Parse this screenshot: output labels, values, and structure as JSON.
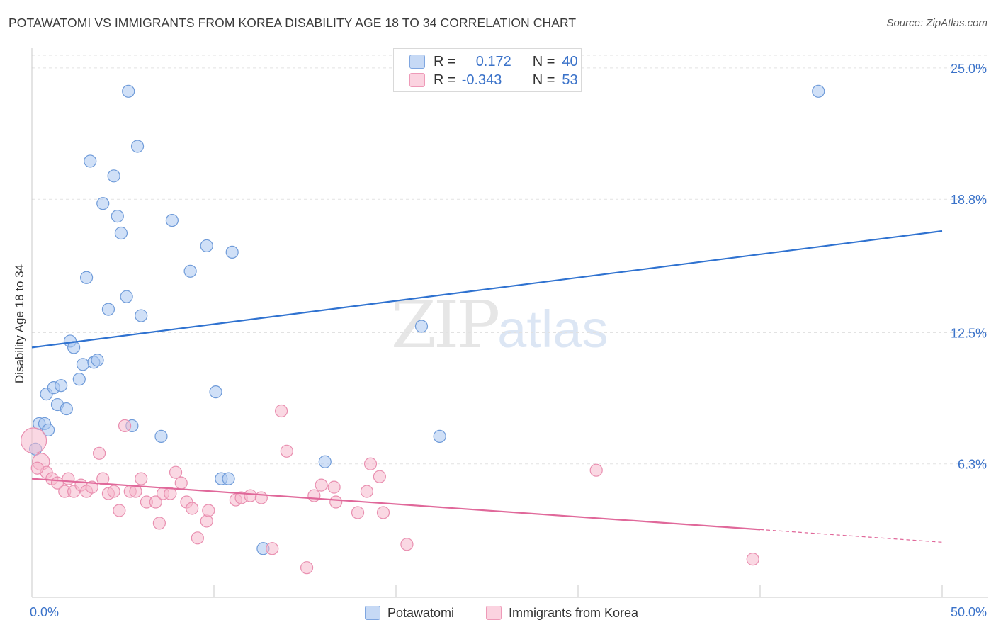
{
  "header": {
    "title": "POTAWATOMI VS IMMIGRANTS FROM KOREA DISABILITY AGE 18 TO 34 CORRELATION CHART",
    "source": "Source: ZipAtlas.com"
  },
  "watermark": {
    "zip": "ZIP",
    "atlas": "atlas"
  },
  "legend": {
    "rows": [
      {
        "r_label": "R =",
        "r_value": "0.172",
        "n_label": "N =",
        "n_value": "40",
        "color": "#a9c6f0"
      },
      {
        "r_label": "R =",
        "r_value": "-0.343",
        "n_label": "N =",
        "n_value": "53",
        "color": "#f5b8cc"
      }
    ]
  },
  "bottom_legend": {
    "series1": "Potawatomi",
    "series2": "Immigrants from Korea"
  },
  "colors": {
    "blue_fill": "#a9c6f0",
    "blue_line": "#2f72d0",
    "pink_fill": "#f5b8cc",
    "pink_line": "#e0689a",
    "tick_label": "#3a72c9",
    "grid": "#e2e2e2"
  },
  "chart_data": {
    "type": "scatter",
    "title": "POTAWATOMI VS IMMIGRANTS FROM KOREA DISABILITY AGE 18 TO 34 CORRELATION CHART",
    "xlabel": "",
    "ylabel": "Disability Age 18 to 34",
    "xlim": [
      0,
      50
    ],
    "ylim": [
      0,
      25.6
    ],
    "x_tick_labels": [
      "0.0%",
      "50.0%"
    ],
    "y_ticks": [
      6.3,
      12.5,
      18.8,
      25.0
    ],
    "y_tick_labels": [
      "6.3%",
      "12.5%",
      "18.8%",
      "25.0%"
    ],
    "grid": "horizontal-dashed",
    "legend_position": "top-center",
    "series": [
      {
        "name": "Potawatomi",
        "color": "#a9c6f0",
        "points": [
          [
            0.2,
            7.0
          ],
          [
            0.4,
            8.2
          ],
          [
            0.7,
            8.2
          ],
          [
            0.9,
            7.9
          ],
          [
            0.8,
            9.6
          ],
          [
            1.2,
            9.9
          ],
          [
            1.4,
            9.1
          ],
          [
            1.6,
            10.0
          ],
          [
            1.9,
            8.9
          ],
          [
            2.1,
            12.1
          ],
          [
            2.3,
            11.8
          ],
          [
            2.6,
            10.3
          ],
          [
            2.8,
            11.0
          ],
          [
            3.0,
            15.1
          ],
          [
            3.2,
            20.6
          ],
          [
            3.4,
            11.1
          ],
          [
            3.6,
            11.2
          ],
          [
            3.9,
            18.6
          ],
          [
            4.2,
            13.6
          ],
          [
            4.5,
            19.9
          ],
          [
            4.7,
            18.0
          ],
          [
            4.9,
            17.2
          ],
          [
            5.2,
            14.2
          ],
          [
            5.3,
            23.9
          ],
          [
            5.5,
            8.1
          ],
          [
            5.8,
            21.3
          ],
          [
            6.0,
            13.3
          ],
          [
            7.1,
            7.6
          ],
          [
            7.7,
            17.8
          ],
          [
            8.7,
            15.4
          ],
          [
            9.6,
            16.6
          ],
          [
            10.1,
            9.7
          ],
          [
            10.4,
            5.6
          ],
          [
            10.8,
            5.6
          ],
          [
            11.0,
            16.3
          ],
          [
            12.7,
            2.3
          ],
          [
            16.1,
            6.4
          ],
          [
            21.4,
            12.8
          ],
          [
            22.4,
            7.6
          ],
          [
            43.2,
            23.9
          ]
        ]
      },
      {
        "name": "Immigrants from Korea",
        "color": "#f5b8cc",
        "points": [
          [
            0.1,
            7.4
          ],
          [
            0.5,
            6.4
          ],
          [
            0.8,
            5.9
          ],
          [
            1.1,
            5.6
          ],
          [
            1.4,
            5.4
          ],
          [
            1.8,
            5.0
          ],
          [
            2.0,
            5.6
          ],
          [
            2.3,
            5.0
          ],
          [
            2.7,
            5.3
          ],
          [
            3.0,
            5.0
          ],
          [
            3.3,
            5.2
          ],
          [
            3.7,
            6.8
          ],
          [
            3.9,
            5.6
          ],
          [
            4.2,
            4.9
          ],
          [
            4.5,
            5.0
          ],
          [
            4.8,
            4.1
          ],
          [
            5.1,
            8.1
          ],
          [
            5.4,
            5.0
          ],
          [
            5.7,
            5.0
          ],
          [
            6.0,
            5.6
          ],
          [
            6.3,
            4.5
          ],
          [
            6.8,
            4.5
          ],
          [
            7.0,
            3.5
          ],
          [
            7.2,
            4.9
          ],
          [
            7.6,
            4.9
          ],
          [
            7.9,
            5.9
          ],
          [
            8.2,
            5.4
          ],
          [
            8.5,
            4.5
          ],
          [
            8.8,
            4.2
          ],
          [
            9.1,
            2.8
          ],
          [
            9.6,
            3.6
          ],
          [
            9.7,
            4.1
          ],
          [
            11.2,
            4.6
          ],
          [
            11.5,
            4.7
          ],
          [
            12.0,
            4.8
          ],
          [
            12.6,
            4.7
          ],
          [
            13.2,
            2.3
          ],
          [
            13.7,
            8.8
          ],
          [
            14.0,
            6.9
          ],
          [
            15.1,
            1.4
          ],
          [
            15.5,
            4.8
          ],
          [
            15.9,
            5.3
          ],
          [
            16.6,
            5.2
          ],
          [
            16.7,
            4.5
          ],
          [
            17.9,
            4.0
          ],
          [
            18.4,
            5.0
          ],
          [
            18.6,
            6.3
          ],
          [
            19.1,
            5.7
          ],
          [
            19.3,
            4.0
          ],
          [
            20.6,
            2.5
          ],
          [
            31.0,
            6.0
          ],
          [
            39.6,
            1.8
          ],
          [
            0.3,
            6.1
          ]
        ]
      }
    ],
    "trend_lines": [
      {
        "series": "Potawatomi",
        "x": [
          0,
          50
        ],
        "y": [
          11.8,
          17.3
        ],
        "style": "solid"
      },
      {
        "series": "Immigrants from Korea",
        "x": [
          0,
          40
        ],
        "y": [
          5.6,
          3.2
        ],
        "style": "solid"
      },
      {
        "series": "Immigrants from Korea",
        "x": [
          40,
          50
        ],
        "y": [
          3.2,
          2.6
        ],
        "style": "dashed"
      }
    ]
  }
}
